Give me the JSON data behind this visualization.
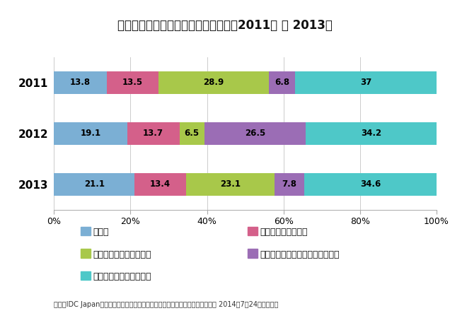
{
  "title": "パブリッククラウドの利用検討状況、2011年 ～ 2013年",
  "years": [
    "2011",
    "2012",
    "2013"
  ],
  "categories": [
    "利用中",
    "利用を前提に検討中",
    "興味があり、情報収集中",
    "検討したが利用しないことに決定",
    "興味はない／分からない"
  ],
  "colors": [
    "#7bafd4",
    "#d4608a",
    "#a8c84a",
    "#9b6db5",
    "#4ec8c8"
  ],
  "data": {
    "2011": [
      13.8,
      13.5,
      28.9,
      6.8,
      37.0
    ],
    "2012": [
      19.1,
      13.7,
      6.5,
      26.5,
      34.2
    ],
    "2013": [
      21.1,
      13.4,
      23.1,
      7.8,
      34.6
    ]
  },
  "source": "出典：IDC Japanプレスリリース「国内クラウド市場ユーザー動向調査を発表」 2014年7月24日発表より",
  "background_color": "#ffffff",
  "bar_height": 0.45,
  "xlim": [
    0,
    100
  ],
  "legend_order": [
    0,
    2,
    4,
    1,
    3
  ]
}
